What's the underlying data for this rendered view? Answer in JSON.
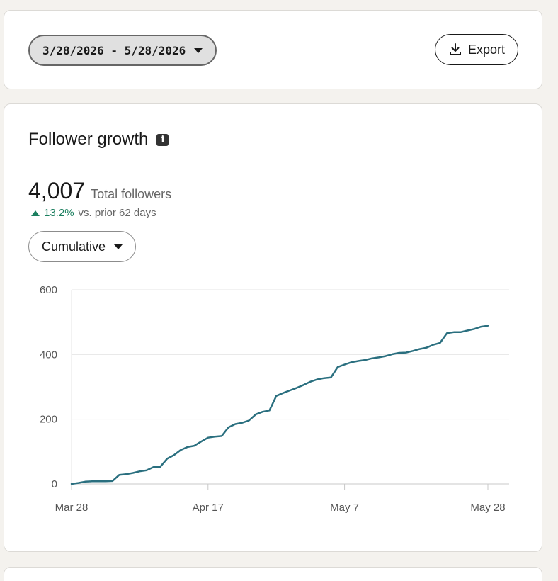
{
  "date_range": {
    "label": "3/28/2026 - 5/28/2026"
  },
  "export": {
    "label": "Export"
  },
  "follower_growth": {
    "title": "Follower growth",
    "total_value": "4,007",
    "total_label": "Total followers",
    "change_pct": "13.2%",
    "change_desc": "vs. prior 62 days",
    "view_select": "Cumulative"
  },
  "chart_data": {
    "type": "line",
    "title": "",
    "xlabel": "",
    "ylabel": "",
    "ylim": [
      0,
      600
    ],
    "yticks": [
      0,
      200,
      400,
      600
    ],
    "ytick_labels": [
      "0",
      "200",
      "400",
      "600"
    ],
    "xticks": [
      0,
      20,
      40,
      61
    ],
    "xtick_labels": [
      "Mar 28",
      "Apr 17",
      "May 7",
      "May 28"
    ],
    "x_unit": "days from Mar 28",
    "grid": true,
    "color": "#2a6f7f",
    "series": [
      {
        "x": [
          0,
          1,
          2,
          3,
          4,
          5,
          6,
          7,
          8,
          9,
          10,
          11,
          12,
          13,
          14,
          15,
          16,
          17,
          18,
          19,
          20,
          21,
          22,
          23,
          24,
          25,
          26,
          27,
          28,
          29,
          30,
          31,
          32,
          33,
          34,
          35,
          36,
          37,
          38,
          39,
          40,
          41,
          42,
          43,
          44,
          45,
          46,
          47,
          48,
          49,
          50,
          51,
          52,
          53,
          54,
          55,
          56,
          57,
          58,
          59,
          60,
          61
        ],
        "values": [
          0,
          3,
          7,
          8,
          8,
          8,
          9,
          28,
          30,
          34,
          39,
          42,
          52,
          53,
          78,
          89,
          105,
          114,
          118,
          131,
          143,
          146,
          148,
          175,
          185,
          189,
          196,
          215,
          223,
          227,
          272,
          281,
          289,
          297,
          306,
          316,
          323,
          327,
          329,
          361,
          369,
          376,
          380,
          383,
          388,
          391,
          395,
          401,
          405,
          406,
          411,
          417,
          421,
          430,
          436,
          466,
          469,
          469,
          474,
          479,
          486,
          489
        ]
      }
    ]
  }
}
